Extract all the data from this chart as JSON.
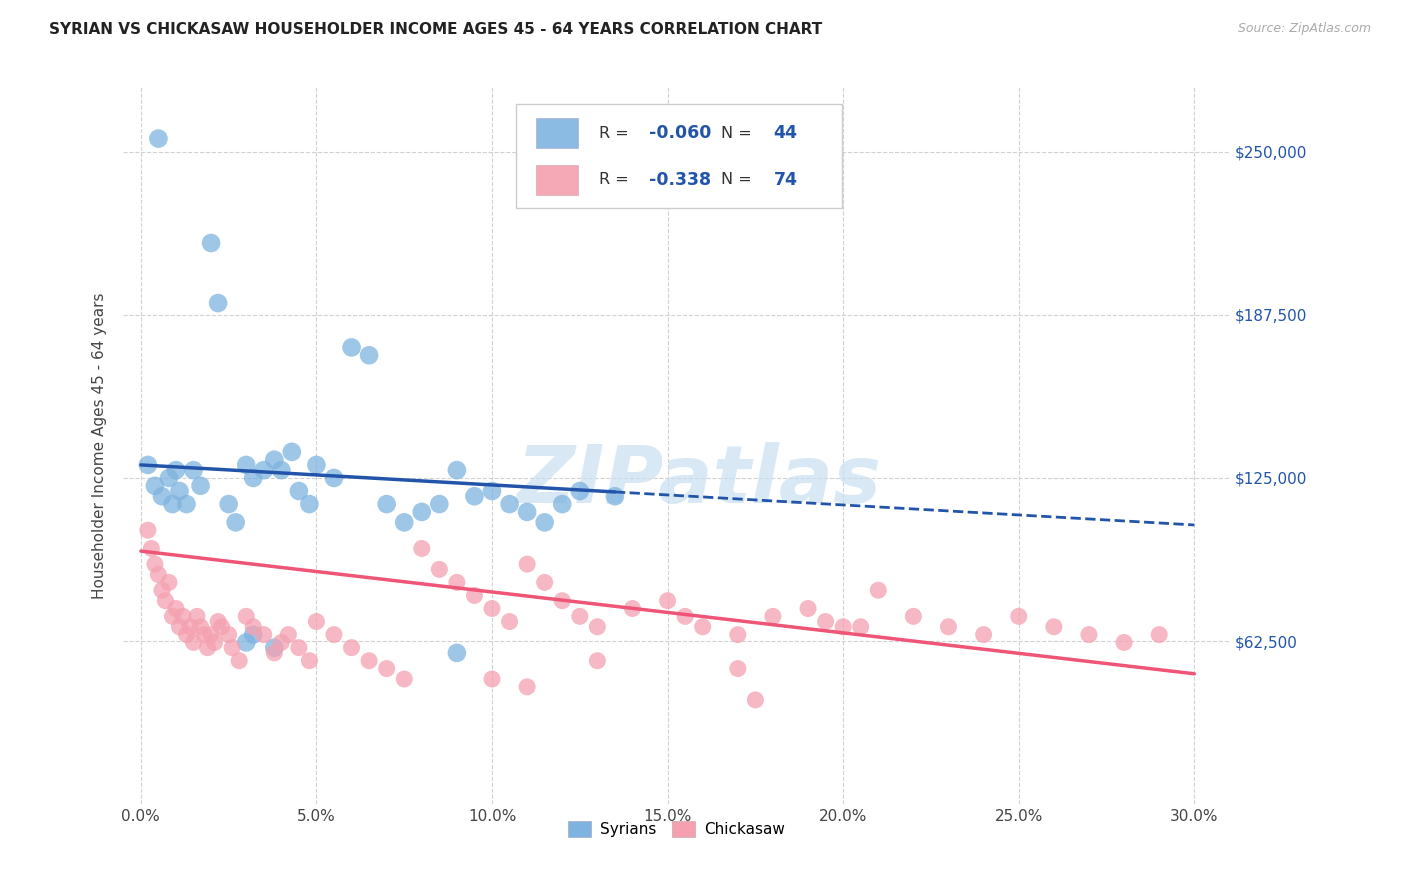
{
  "title": "SYRIAN VS CHICKASAW HOUSEHOLDER INCOME AGES 45 - 64 YEARS CORRELATION CHART",
  "source": "Source: ZipAtlas.com",
  "ylabel": "Householder Income Ages 45 - 64 years",
  "xlabel_ticks": [
    "0.0%",
    "5.0%",
    "10.0%",
    "15.0%",
    "20.0%",
    "25.0%",
    "30.0%"
  ],
  "xlabel_vals": [
    0,
    5,
    10,
    15,
    20,
    25,
    30
  ],
  "ytick_labels": [
    "$62,500",
    "$125,000",
    "$187,500",
    "$250,000"
  ],
  "ytick_vals": [
    62500,
    125000,
    187500,
    250000
  ],
  "ylim": [
    0,
    275000
  ],
  "xlim": [
    -0.5,
    31
  ],
  "blue_R": "-0.060",
  "blue_N": "44",
  "pink_R": "-0.338",
  "pink_N": "74",
  "blue_color": "#7EB3E0",
  "pink_color": "#F4A0B0",
  "blue_line_color": "#2255AA",
  "pink_line_color": "#EE5577",
  "watermark": "ZIPatlas",
  "blue_scatter_x": [
    0.2,
    0.4,
    0.5,
    0.6,
    0.8,
    0.9,
    1.0,
    1.1,
    1.3,
    1.5,
    1.7,
    2.0,
    2.2,
    2.5,
    2.7,
    3.0,
    3.2,
    3.5,
    3.8,
    4.0,
    4.3,
    4.5,
    4.8,
    5.0,
    5.5,
    6.0,
    6.5,
    7.0,
    7.5,
    8.0,
    8.5,
    9.0,
    9.5,
    10.0,
    10.5,
    11.0,
    11.5,
    12.0,
    12.5,
    13.5,
    3.0,
    3.2,
    3.8,
    9.0
  ],
  "blue_scatter_y": [
    130000,
    122000,
    255000,
    118000,
    125000,
    115000,
    128000,
    120000,
    115000,
    128000,
    122000,
    215000,
    192000,
    115000,
    108000,
    130000,
    125000,
    128000,
    132000,
    128000,
    135000,
    120000,
    115000,
    130000,
    125000,
    175000,
    172000,
    115000,
    108000,
    112000,
    115000,
    128000,
    118000,
    120000,
    115000,
    112000,
    108000,
    115000,
    120000,
    118000,
    62000,
    65000,
    60000,
    58000
  ],
  "pink_scatter_x": [
    0.2,
    0.3,
    0.4,
    0.5,
    0.6,
    0.7,
    0.8,
    0.9,
    1.0,
    1.1,
    1.2,
    1.3,
    1.4,
    1.5,
    1.6,
    1.7,
    1.8,
    1.9,
    2.0,
    2.1,
    2.2,
    2.3,
    2.5,
    2.6,
    2.8,
    3.0,
    3.2,
    3.5,
    3.8,
    4.0,
    4.2,
    4.5,
    4.8,
    5.0,
    5.5,
    6.0,
    6.5,
    7.0,
    7.5,
    8.0,
    8.5,
    9.0,
    9.5,
    10.0,
    10.5,
    11.0,
    11.5,
    12.0,
    12.5,
    13.0,
    14.0,
    15.0,
    15.5,
    16.0,
    17.0,
    18.0,
    19.0,
    19.5,
    20.0,
    21.0,
    22.0,
    23.0,
    24.0,
    25.0,
    26.0,
    27.0,
    28.0,
    29.0,
    17.5,
    20.5,
    10.0,
    11.0,
    13.0,
    17.0
  ],
  "pink_scatter_y": [
    105000,
    98000,
    92000,
    88000,
    82000,
    78000,
    85000,
    72000,
    75000,
    68000,
    72000,
    65000,
    68000,
    62000,
    72000,
    68000,
    65000,
    60000,
    65000,
    62000,
    70000,
    68000,
    65000,
    60000,
    55000,
    72000,
    68000,
    65000,
    58000,
    62000,
    65000,
    60000,
    55000,
    70000,
    65000,
    60000,
    55000,
    52000,
    48000,
    98000,
    90000,
    85000,
    80000,
    75000,
    70000,
    92000,
    85000,
    78000,
    72000,
    68000,
    75000,
    78000,
    72000,
    68000,
    65000,
    72000,
    75000,
    70000,
    68000,
    82000,
    72000,
    68000,
    65000,
    72000,
    68000,
    65000,
    62000,
    65000,
    40000,
    68000,
    48000,
    45000,
    55000,
    52000
  ]
}
